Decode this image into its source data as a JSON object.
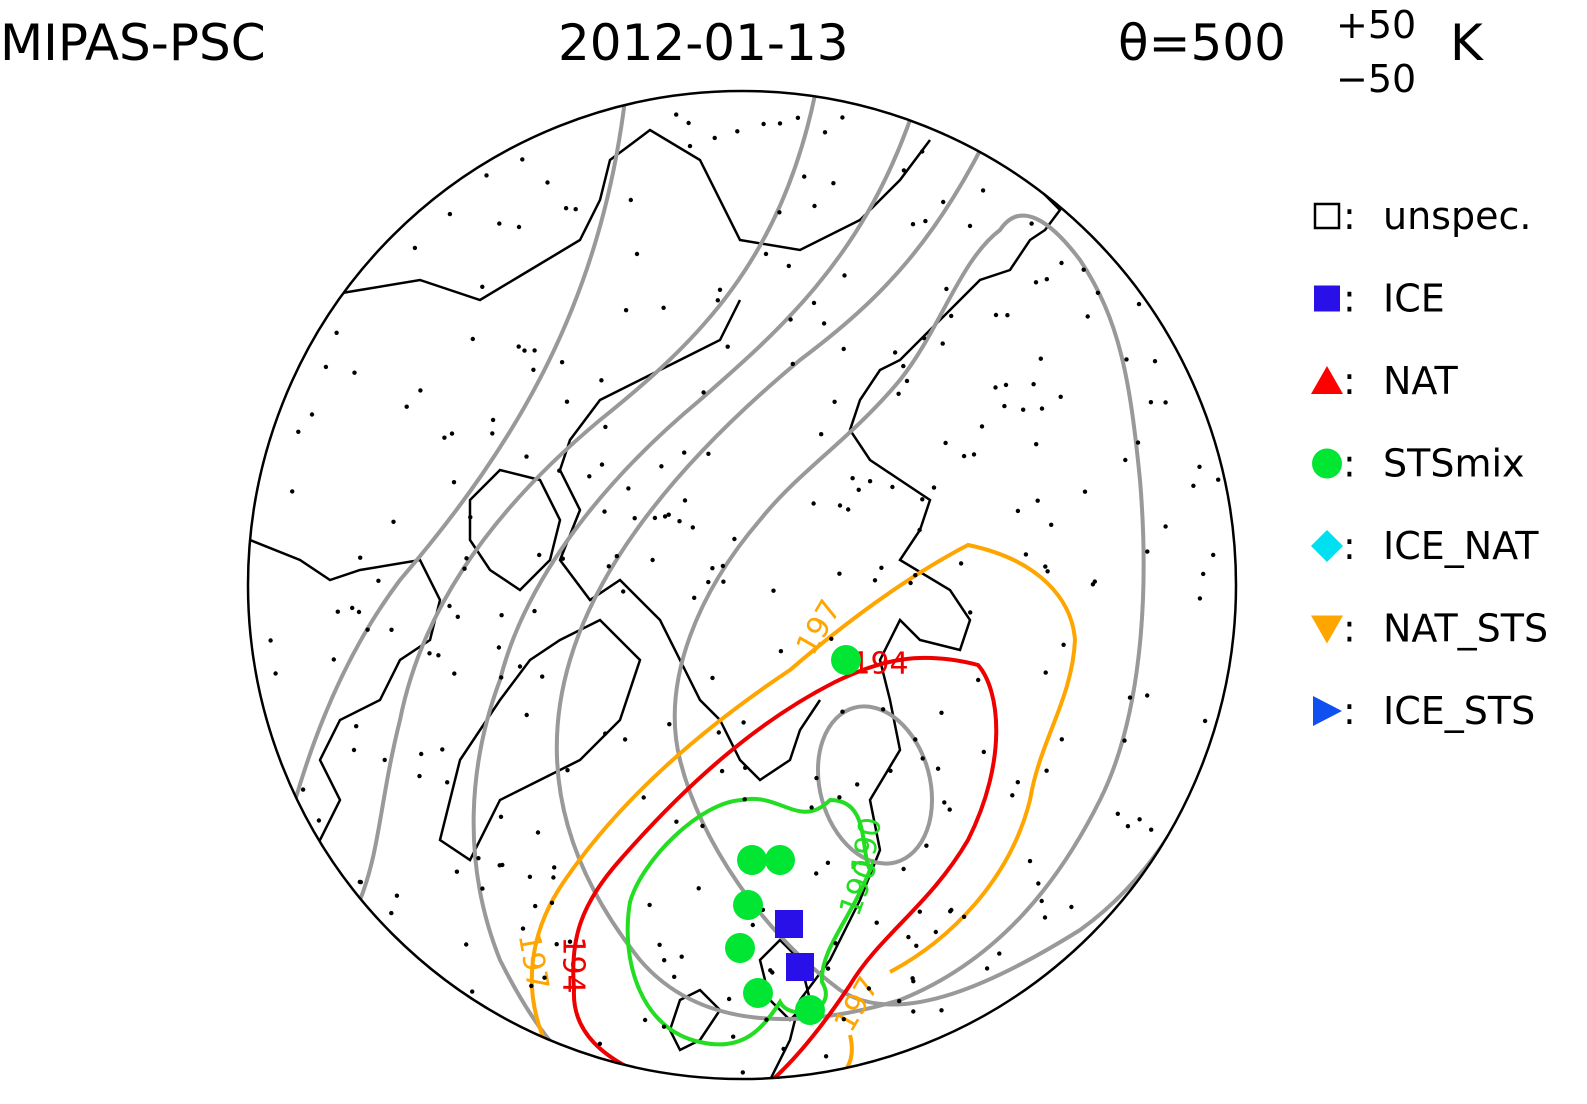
{
  "header": {
    "instrument": "MIPAS-PSC",
    "date": "2012-01-13",
    "theta": "θ=500",
    "theta_upper": "+50",
    "theta_lower": "−50",
    "unit": "K"
  },
  "legend": {
    "separator": ":",
    "items": [
      {
        "label": "unspec.",
        "marker": "square-open",
        "color": "#000000"
      },
      {
        "label": "ICE",
        "marker": "square",
        "color": "#2a10e8"
      },
      {
        "label": "NAT",
        "marker": "triangle-up",
        "color": "#ff0000"
      },
      {
        "label": "STSmix",
        "marker": "circle",
        "color": "#00e632"
      },
      {
        "label": "ICE_NAT",
        "marker": "diamond",
        "color": "#00e0f0"
      },
      {
        "label": "NAT_STS",
        "marker": "triangle-down",
        "color": "#ffa500"
      },
      {
        "label": "ICE_STS",
        "marker": "triangle-right",
        "color": "#1050f0"
      }
    ]
  },
  "contours": [
    {
      "label": "197",
      "color": "#ffa500"
    },
    {
      "label": "194",
      "color": "#ee0000"
    },
    {
      "label": "190",
      "color": "#22dd22"
    }
  ]
}
